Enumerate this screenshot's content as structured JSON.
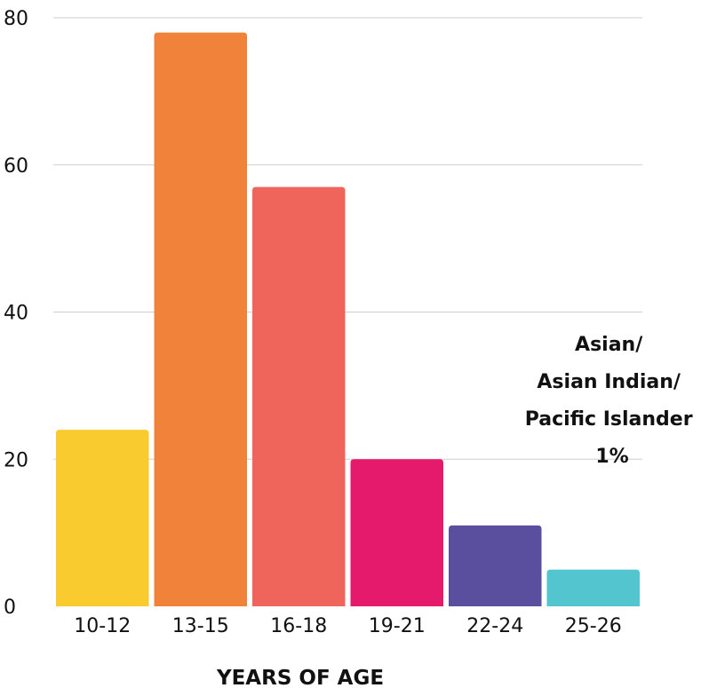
{
  "chart_data": {
    "type": "bar",
    "categories": [
      "10-12",
      "13-15",
      "16-18",
      "19-21",
      "22-24",
      "25-26"
    ],
    "values": [
      24,
      78,
      57,
      20,
      11,
      5
    ],
    "colors": [
      "#F9CB2E",
      "#F0823A",
      "#EF655C",
      "#E51A6D",
      "#5A4F9F",
      "#52C5CF"
    ],
    "xlabel": "YEARS OF AGE",
    "ylabel": "",
    "ylim": [
      0,
      80
    ],
    "yticks": [
      "0",
      "20",
      "40",
      "60",
      "80"
    ],
    "grid": true,
    "annotation": {
      "lines": [
        "Asian/",
        "Asian Indian/",
        "Pacific Islander",
        "1%"
      ]
    }
  }
}
